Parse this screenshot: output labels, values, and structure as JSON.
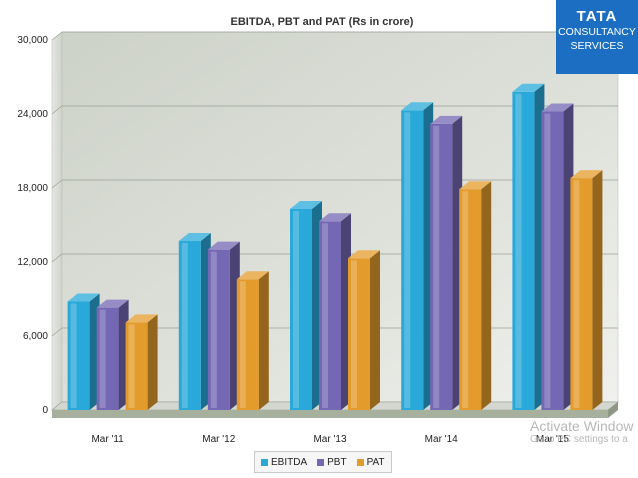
{
  "branding": {
    "word": "TATA",
    "line1": "CONSULTANCY",
    "line2": "SERVICES",
    "color": "#1c6ec2"
  },
  "chart_data": {
    "type": "bar",
    "title": "EBITDA, PBT and PAT (Rs in crore)",
    "categories": [
      "Mar '11",
      "Mar '12",
      "Mar '13",
      "Mar '14",
      "Mar '15"
    ],
    "series": [
      {
        "name": "EBITDA",
        "color": "#29a9d9",
        "values": [
          8800,
          13700,
          16300,
          24300,
          25800
        ]
      },
      {
        "name": "PBT",
        "color": "#7467b3",
        "values": [
          8300,
          13000,
          15300,
          23200,
          24200
        ]
      },
      {
        "name": "PAT",
        "color": "#e39b2c",
        "values": [
          7100,
          10600,
          12300,
          17900,
          18800
        ]
      }
    ],
    "yticks": [
      "0",
      "6,000",
      "12,000",
      "18,000",
      "24,000",
      "30,000"
    ],
    "ylim": [
      0,
      30000
    ],
    "xlabel": "",
    "ylabel": "",
    "grid": true,
    "legend_position": "bottom",
    "style": "3d"
  },
  "watermark": {
    "line1": "Activate Window",
    "line2": "Go to PC settings to a"
  }
}
